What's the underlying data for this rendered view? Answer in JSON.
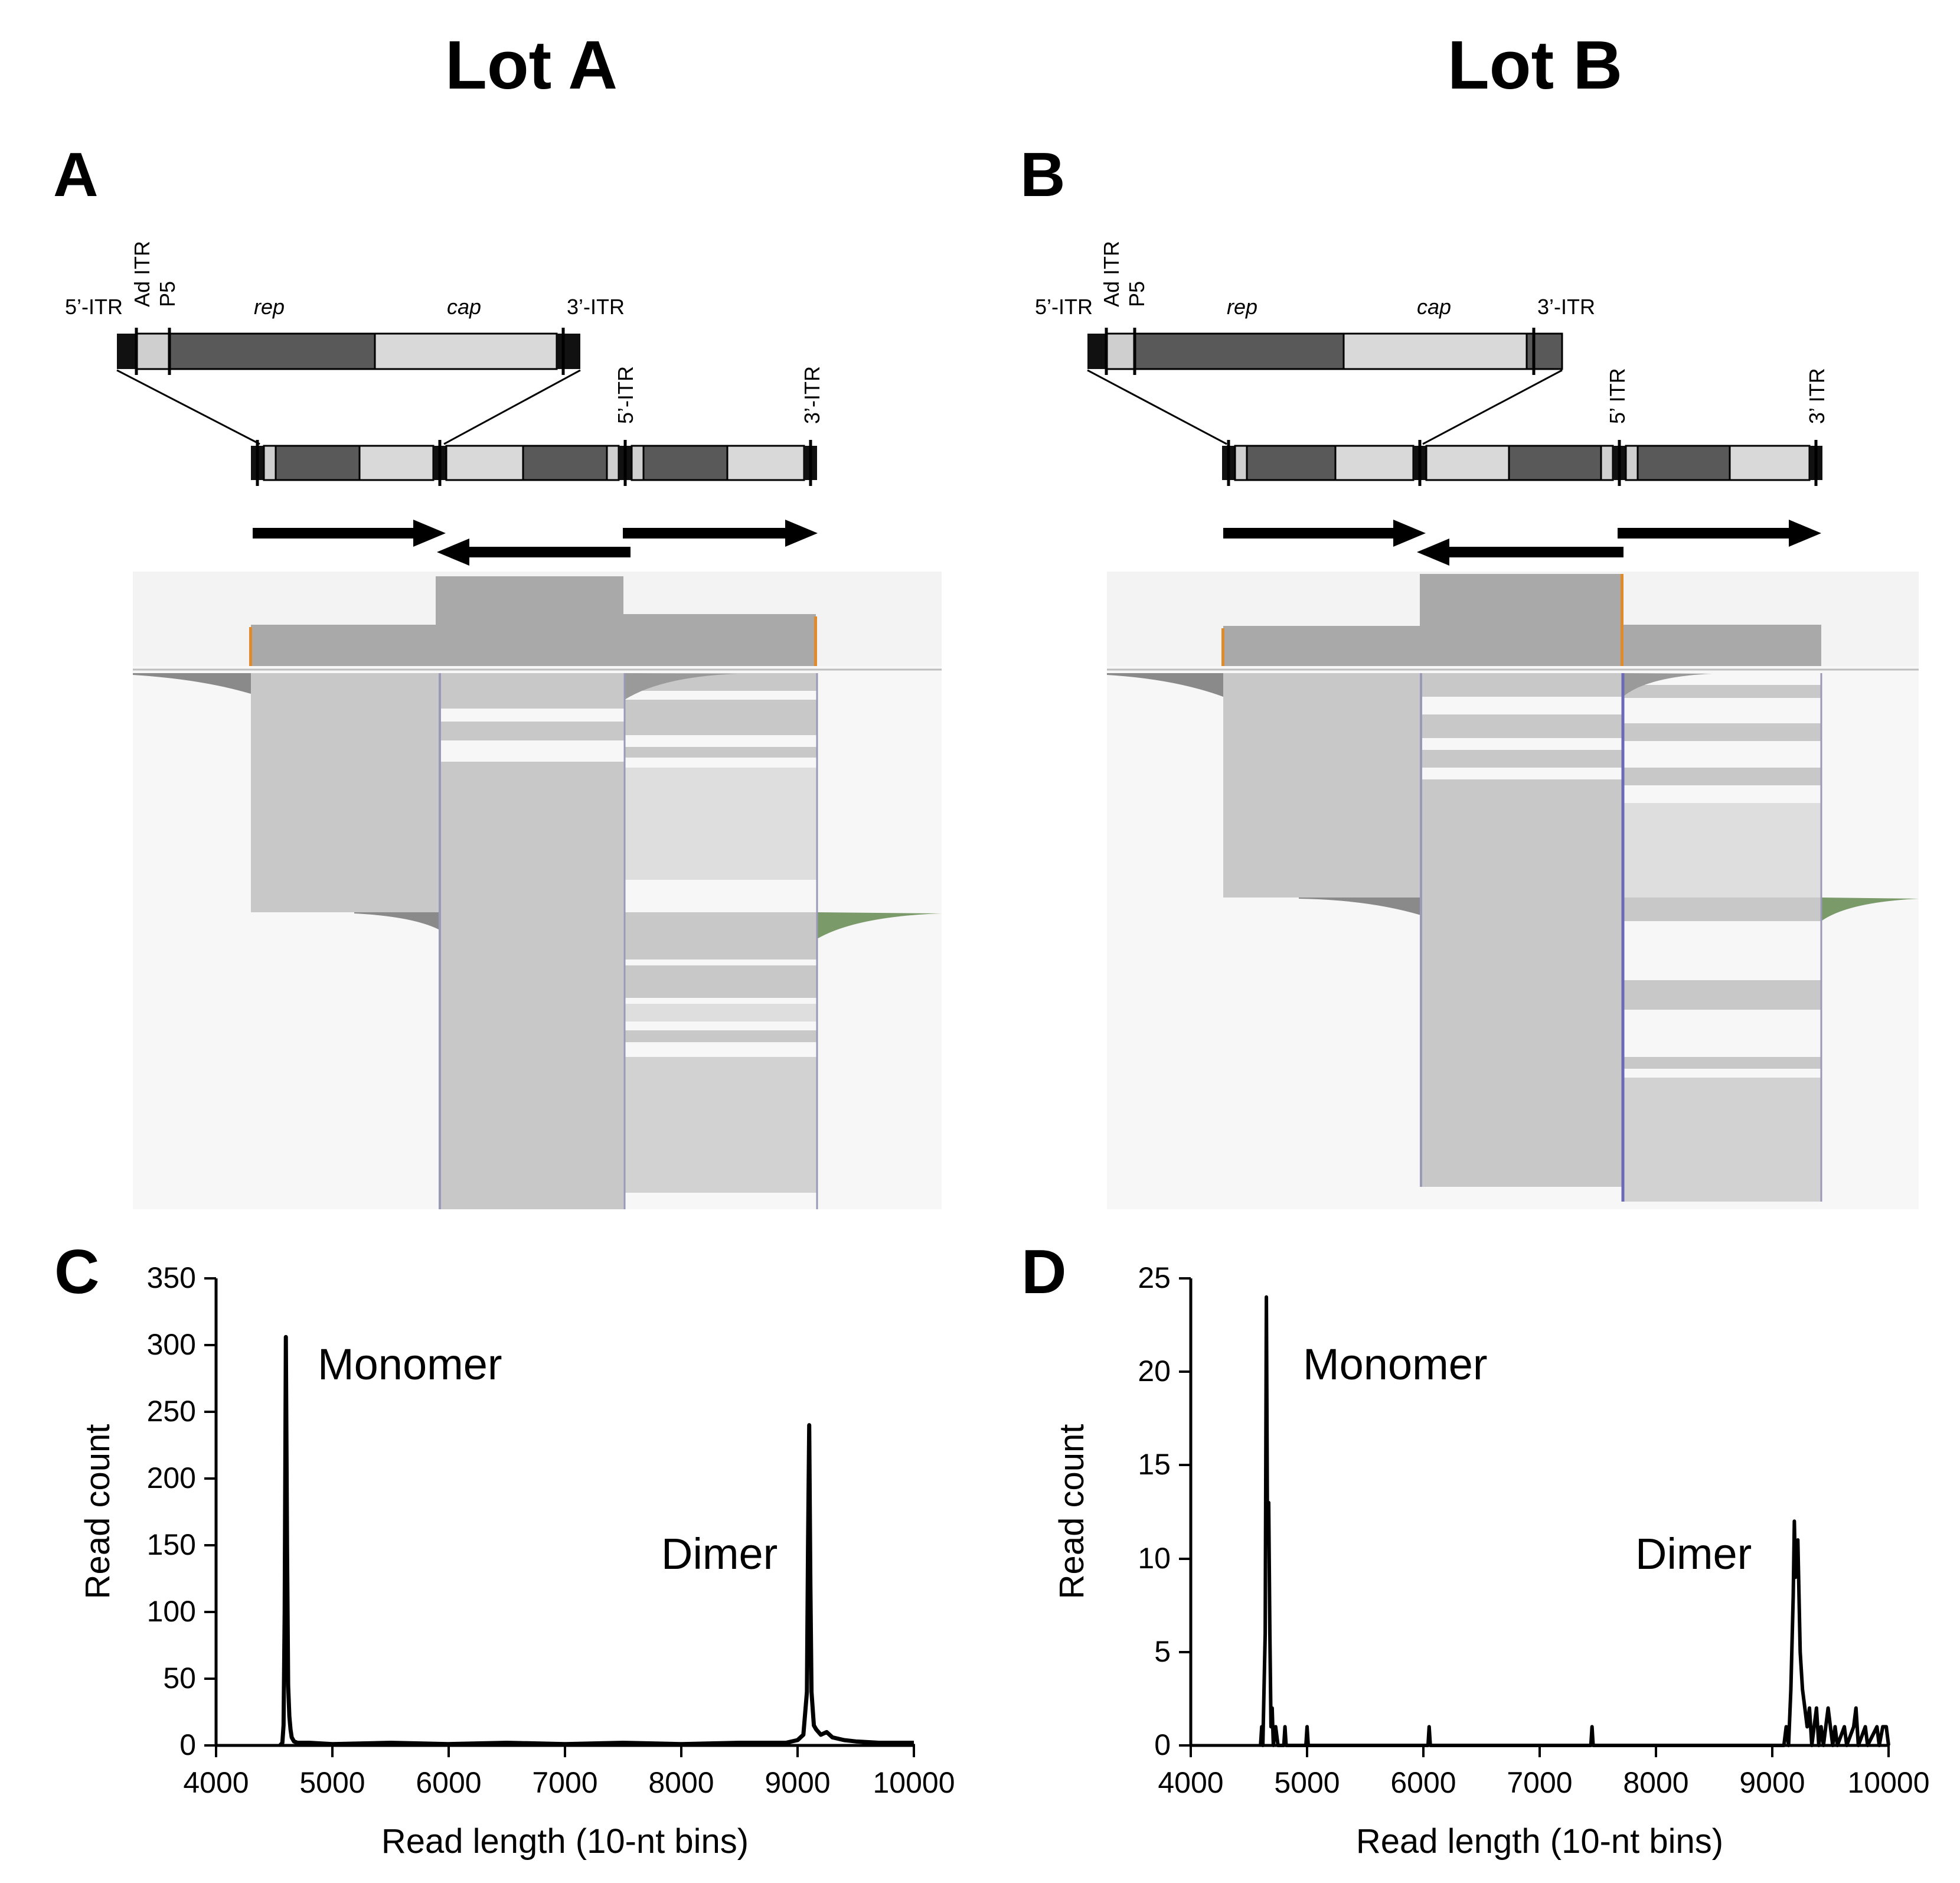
{
  "titles": {
    "lot_a": "Lot A",
    "lot_b": "Lot B"
  },
  "panel_letters": {
    "a": "A",
    "b": "B",
    "c": "C",
    "d": "D"
  },
  "construct_a": {
    "top_labels": [
      "5’-ITR",
      "Ad ITR",
      "P5",
      "rep",
      "cap",
      "3’-ITR"
    ],
    "concat_labels": [
      "5’-ITR",
      "3’-ITR"
    ]
  },
  "construct_b": {
    "top_labels": [
      "5’-ITR",
      "Ad ITR",
      "P5",
      "rep",
      "cap",
      "3’-ITR"
    ],
    "concat_labels": [
      "5’ ITR",
      "3’ ITR"
    ]
  },
  "colors": {
    "dark_block": "#595959",
    "light_block": "#d9d9d9",
    "coverage": "#a9a9a9",
    "read": "#c8c8c8",
    "axis": "#000000"
  },
  "chart_data": [
    {
      "panel": "C",
      "type": "line",
      "title": "",
      "xlabel": "Read length (10-nt bins)",
      "ylabel": "Read count",
      "xlim": [
        4000,
        10000
      ],
      "ylim": [
        0,
        350
      ],
      "xticks": [
        "4000",
        "5000",
        "6000",
        "7000",
        "8000",
        "9000",
        "10000"
      ],
      "yticks": [
        "0",
        "50",
        "100",
        "150",
        "200",
        "250",
        "300",
        "350"
      ],
      "annotations": [
        "Monomer",
        "Dimer"
      ],
      "points": [
        [
          4550,
          0
        ],
        [
          4570,
          2
        ],
        [
          4580,
          15
        ],
        [
          4590,
          100
        ],
        [
          4600,
          306
        ],
        [
          4610,
          150
        ],
        [
          4620,
          45
        ],
        [
          4630,
          22
        ],
        [
          4640,
          12
        ],
        [
          4650,
          6
        ],
        [
          4670,
          3
        ],
        [
          4700,
          2
        ],
        [
          4800,
          2
        ],
        [
          5000,
          1
        ],
        [
          5500,
          2
        ],
        [
          6000,
          1
        ],
        [
          6500,
          2
        ],
        [
          7000,
          1
        ],
        [
          7500,
          2
        ],
        [
          8000,
          1
        ],
        [
          8500,
          2
        ],
        [
          8900,
          2
        ],
        [
          9000,
          4
        ],
        [
          9050,
          8
        ],
        [
          9080,
          40
        ],
        [
          9090,
          150
        ],
        [
          9100,
          240
        ],
        [
          9110,
          120
        ],
        [
          9120,
          40
        ],
        [
          9140,
          15
        ],
        [
          9160,
          12
        ],
        [
          9200,
          8
        ],
        [
          9250,
          10
        ],
        [
          9300,
          6
        ],
        [
          9400,
          4
        ],
        [
          9500,
          3
        ],
        [
          9700,
          2
        ],
        [
          10000,
          2
        ]
      ]
    },
    {
      "panel": "D",
      "type": "line",
      "title": "",
      "xlabel": "Read length (10-nt bins)",
      "ylabel": "Read count",
      "xlim": [
        4000,
        10000
      ],
      "ylim": [
        0,
        25
      ],
      "xticks": [
        "4000",
        "5000",
        "6000",
        "7000",
        "8000",
        "9000",
        "10000"
      ],
      "yticks": [
        "0",
        "5",
        "10",
        "15",
        "20",
        "25"
      ],
      "annotations": [
        "Monomer",
        "Dimer"
      ],
      "points": [
        [
          4600,
          0
        ],
        [
          4610,
          1
        ],
        [
          4620,
          0
        ],
        [
          4640,
          6
        ],
        [
          4650,
          24
        ],
        [
          4660,
          11
        ],
        [
          4670,
          13
        ],
        [
          4680,
          6
        ],
        [
          4690,
          1
        ],
        [
          4700,
          2
        ],
        [
          4710,
          0
        ],
        [
          4730,
          1
        ],
        [
          4750,
          0
        ],
        [
          4800,
          0
        ],
        [
          4810,
          1
        ],
        [
          4820,
          0
        ],
        [
          4990,
          0
        ],
        [
          5000,
          1
        ],
        [
          5010,
          0
        ],
        [
          6040,
          0
        ],
        [
          6050,
          1
        ],
        [
          6060,
          0
        ],
        [
          7440,
          0
        ],
        [
          7450,
          1
        ],
        [
          7460,
          0
        ],
        [
          9100,
          0
        ],
        [
          9120,
          1
        ],
        [
          9140,
          0
        ],
        [
          9160,
          3
        ],
        [
          9180,
          8
        ],
        [
          9190,
          12
        ],
        [
          9200,
          9
        ],
        [
          9220,
          11
        ],
        [
          9240,
          5
        ],
        [
          9260,
          3
        ],
        [
          9280,
          2
        ],
        [
          9300,
          1
        ],
        [
          9320,
          2
        ],
        [
          9340,
          0
        ],
        [
          9360,
          1
        ],
        [
          9380,
          2
        ],
        [
          9400,
          0
        ],
        [
          9420,
          1
        ],
        [
          9440,
          0
        ],
        [
          9460,
          1
        ],
        [
          9480,
          2
        ],
        [
          9500,
          1
        ],
        [
          9520,
          0
        ],
        [
          9540,
          1
        ],
        [
          9560,
          0
        ],
        [
          9620,
          1
        ],
        [
          9640,
          0
        ],
        [
          9700,
          1
        ],
        [
          9720,
          2
        ],
        [
          9740,
          0
        ],
        [
          9800,
          1
        ],
        [
          9820,
          0
        ],
        [
          9900,
          1
        ],
        [
          9920,
          0
        ],
        [
          9950,
          1
        ],
        [
          9980,
          1
        ],
        [
          10000,
          0
        ]
      ]
    }
  ]
}
